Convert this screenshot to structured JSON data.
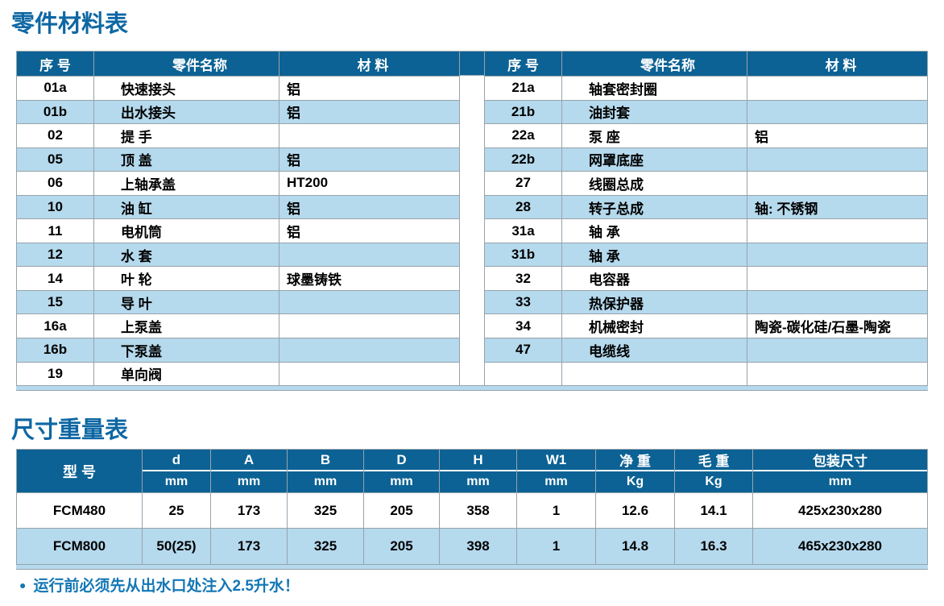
{
  "page": {
    "section1_title": "零件材料表",
    "section2_title": "尺寸重量表",
    "note_bullet": "●",
    "note": "运行前必须先从出水口处注入2.5升水！"
  },
  "colors": {
    "header_blue": "#0c6294",
    "row_blue": "#b5d9ed",
    "border_gray": "#98a3ab",
    "title_blue": "#0e67a3",
    "note_blue": "#1377b4"
  },
  "parts_table": {
    "columns": [
      "序 号",
      "零件名称",
      "材  料"
    ],
    "left_rows": [
      {
        "no": "01a",
        "name": "快速接头",
        "material": "铝"
      },
      {
        "no": "01b",
        "name": "出水接头",
        "material": "铝"
      },
      {
        "no": "02",
        "name": "提 手",
        "material": ""
      },
      {
        "no": "05",
        "name": "顶 盖",
        "material": "铝"
      },
      {
        "no": "06",
        "name": "上轴承盖",
        "material": "HT200"
      },
      {
        "no": "10",
        "name": "油 缸",
        "material": "铝"
      },
      {
        "no": "11",
        "name": "电机筒",
        "material": "铝"
      },
      {
        "no": "12",
        "name": "水 套",
        "material": ""
      },
      {
        "no": "14",
        "name": "叶 轮",
        "material": "球墨铸铁"
      },
      {
        "no": "15",
        "name": "导 叶",
        "material": ""
      },
      {
        "no": "16a",
        "name": "上泵盖",
        "material": ""
      },
      {
        "no": "16b",
        "name": "下泵盖",
        "material": ""
      },
      {
        "no": "19",
        "name": "单向阀",
        "material": ""
      }
    ],
    "right_rows": [
      {
        "no": "21a",
        "name": "轴套密封圈",
        "material": ""
      },
      {
        "no": "21b",
        "name": "油封套",
        "material": ""
      },
      {
        "no": "22a",
        "name": "泵 座",
        "material": "铝"
      },
      {
        "no": "22b",
        "name": "网罩底座",
        "material": ""
      },
      {
        "no": "27",
        "name": "线圈总成",
        "material": ""
      },
      {
        "no": "28",
        "name": "转子总成",
        "material": "轴: 不锈钢"
      },
      {
        "no": "31a",
        "name": "轴 承",
        "material": ""
      },
      {
        "no": "31b",
        "name": "轴 承",
        "material": ""
      },
      {
        "no": "32",
        "name": "电容器",
        "material": ""
      },
      {
        "no": "33",
        "name": "热保护器",
        "material": ""
      },
      {
        "no": "34",
        "name": "机械密封",
        "material": "陶瓷-碳化硅/石墨-陶瓷"
      },
      {
        "no": "47",
        "name": "电缆线",
        "material": ""
      },
      {
        "no": "",
        "name": "",
        "material": ""
      }
    ]
  },
  "size_table": {
    "model_header": "型 号",
    "columns": [
      {
        "label": "d",
        "unit": "mm"
      },
      {
        "label": "A",
        "unit": "mm"
      },
      {
        "label": "B",
        "unit": "mm"
      },
      {
        "label": "D",
        "unit": "mm"
      },
      {
        "label": "H",
        "unit": "mm"
      },
      {
        "label": "W1",
        "unit": "mm"
      },
      {
        "label": "净 重",
        "unit": "Kg"
      },
      {
        "label": "毛 重",
        "unit": "Kg"
      },
      {
        "label": "包装尺寸",
        "unit": "mm"
      }
    ],
    "rows": [
      {
        "model": "FCM480",
        "values": [
          "25",
          "173",
          "325",
          "205",
          "358",
          "1",
          "12.6",
          "14.1",
          "425x230x280"
        ]
      },
      {
        "model": "FCM800",
        "values": [
          "50(25)",
          "173",
          "325",
          "205",
          "398",
          "1",
          "14.8",
          "16.3",
          "465x230x280"
        ]
      }
    ]
  }
}
